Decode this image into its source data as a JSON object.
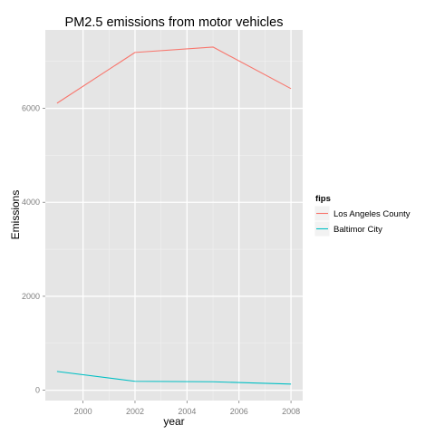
{
  "chart_data": {
    "type": "line",
    "title": "PM2.5 emissions from motor vehicles",
    "xlabel": "year",
    "ylabel": "Emissions",
    "x": [
      1999,
      2002,
      2005,
      2008
    ],
    "xlim": [
      1998.55,
      2008.45
    ],
    "ylim": [
      -220,
      7670
    ],
    "x_ticks": [
      2000,
      2002,
      2004,
      2006,
      2008
    ],
    "y_ticks": [
      0,
      2000,
      4000,
      6000
    ],
    "grid": true,
    "legend": {
      "title": "fips",
      "placement": "right"
    },
    "series": [
      {
        "name": "Los Angeles County",
        "color": "#F8766D",
        "values": [
          6110,
          7190,
          7305,
          6420
        ]
      },
      {
        "name": "Baltimor City",
        "color": "#00BFC4",
        "values": [
          400,
          190,
          180,
          130
        ]
      }
    ]
  }
}
